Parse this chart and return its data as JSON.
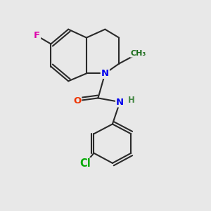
{
  "background_color": "#e8e8e8",
  "bond_color": "#2a2a2a",
  "bond_width": 1.5,
  "atom_colors": {
    "F": "#dd00aa",
    "N": "#0000ee",
    "O": "#ee3300",
    "Cl": "#00aa00",
    "H": "#448844",
    "C": "#2a2a2a"
  },
  "font_size": 9.5,
  "fig_size": [
    3.0,
    3.0
  ],
  "dpi": 100,
  "bl": 0.095
}
